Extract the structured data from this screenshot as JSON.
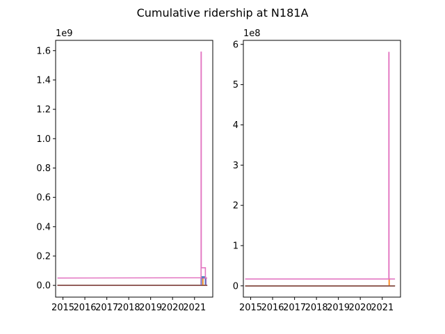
{
  "figure": {
    "suptitle": "Cumulative ridership at N181A"
  },
  "chart_data": [
    {
      "type": "line",
      "title": "",
      "xlabel": "",
      "ylabel": "",
      "x_type": "date",
      "x_tick_labels": [
        "2015",
        "2016",
        "2017",
        "2018",
        "2019",
        "2020",
        "2021"
      ],
      "xlim": [
        "2014-09-01",
        "2021-11-01"
      ],
      "y_offset_label": "1e9",
      "y_multiplier": 1000000000,
      "ylim": [
        -0.08,
        1.67
      ],
      "y_ticks": [
        0.0,
        0.2,
        0.4,
        0.6,
        0.8,
        1.0,
        1.2,
        1.4,
        1.6
      ],
      "y_tick_labels": [
        "0.0",
        "0.2",
        "0.4",
        "0.6",
        "0.8",
        "1.0",
        "1.2",
        "1.4",
        "1.6"
      ],
      "grid": false,
      "series": [
        {
          "color": "#1f77b4",
          "points": [
            [
              "2014-10-01",
              0.0
            ],
            [
              "2021-04-25",
              0.0
            ],
            [
              "2021-04-25",
              0.058
            ],
            [
              "2021-07-01",
              0.058
            ],
            [
              "2021-07-01",
              0.0
            ],
            [
              "2021-08-01",
              0.0
            ]
          ]
        },
        {
          "color": "#ff7f0e",
          "points": [
            [
              "2014-10-01",
              0.0
            ],
            [
              "2021-05-20",
              0.0
            ],
            [
              "2021-05-20",
              0.05
            ],
            [
              "2021-05-21",
              0.05
            ],
            [
              "2021-05-21",
              0.0
            ],
            [
              "2021-08-01",
              0.0
            ]
          ]
        },
        {
          "color": "#2ca02c",
          "points": [
            [
              "2014-10-01",
              0.0
            ],
            [
              "2021-08-01",
              0.0
            ]
          ]
        },
        {
          "color": "#d62728",
          "points": [
            [
              "2014-10-01",
              0.0
            ],
            [
              "2021-08-01",
              0.0
            ]
          ]
        },
        {
          "color": "#9467bd",
          "points": [
            [
              "2014-10-01",
              0.0
            ],
            [
              "2021-04-20",
              0.0
            ],
            [
              "2021-04-20",
              0.05
            ],
            [
              "2021-07-10",
              0.05
            ],
            [
              "2021-07-10",
              0.0
            ],
            [
              "2021-08-01",
              0.0
            ]
          ]
        },
        {
          "color": "#8c564b",
          "points": [
            [
              "2014-10-01",
              0.0
            ],
            [
              "2021-08-01",
              0.0
            ]
          ]
        },
        {
          "color": "#e377c2",
          "points": [
            [
              "2014-10-01",
              0.05
            ],
            [
              "2021-04-20",
              0.052
            ],
            [
              "2021-04-20",
              1.59
            ],
            [
              "2021-04-24",
              1.59
            ],
            [
              "2021-04-24",
              0.12
            ],
            [
              "2021-07-01",
              0.12
            ],
            [
              "2021-07-01",
              0.05
            ],
            [
              "2021-08-01",
              0.05
            ]
          ]
        }
      ]
    },
    {
      "type": "line",
      "title": "",
      "xlabel": "",
      "ylabel": "",
      "x_type": "date",
      "x_tick_labels": [
        "2015",
        "2016",
        "2017",
        "2018",
        "2019",
        "2020",
        "2021"
      ],
      "xlim": [
        "2014-09-01",
        "2021-11-01"
      ],
      "y_offset_label": "1e8",
      "y_multiplier": 100000000,
      "ylim": [
        -0.28,
        6.1
      ],
      "y_ticks": [
        0,
        1,
        2,
        3,
        4,
        5,
        6
      ],
      "y_tick_labels": [
        "0",
        "1",
        "2",
        "3",
        "4",
        "5",
        "6"
      ],
      "grid": false,
      "series": [
        {
          "color": "#1f77b4",
          "points": [
            [
              "2014-10-01",
              0.0
            ],
            [
              "2021-08-01",
              0.0
            ]
          ]
        },
        {
          "color": "#ff7f0e",
          "points": [
            [
              "2014-10-01",
              0.0
            ],
            [
              "2021-04-25",
              0.0
            ],
            [
              "2021-04-25",
              0.18
            ],
            [
              "2021-04-27",
              0.18
            ],
            [
              "2021-04-27",
              0.0
            ],
            [
              "2021-08-01",
              0.0
            ]
          ]
        },
        {
          "color": "#2ca02c",
          "points": [
            [
              "2014-10-01",
              0.0
            ],
            [
              "2021-08-01",
              0.0
            ]
          ]
        },
        {
          "color": "#d62728",
          "points": [
            [
              "2014-10-01",
              0.0
            ],
            [
              "2021-08-01",
              0.0
            ]
          ]
        },
        {
          "color": "#9467bd",
          "points": [
            [
              "2014-10-01",
              0.0
            ],
            [
              "2021-08-01",
              0.0
            ]
          ]
        },
        {
          "color": "#8c564b",
          "points": [
            [
              "2014-10-01",
              0.0
            ],
            [
              "2021-08-01",
              0.0
            ]
          ]
        },
        {
          "color": "#e377c2",
          "points": [
            [
              "2014-10-01",
              0.17
            ],
            [
              "2021-04-20",
              0.17
            ],
            [
              "2021-04-20",
              5.8
            ],
            [
              "2021-04-24",
              5.8
            ],
            [
              "2021-04-24",
              0.17
            ],
            [
              "2021-08-01",
              0.17
            ]
          ]
        }
      ]
    }
  ]
}
